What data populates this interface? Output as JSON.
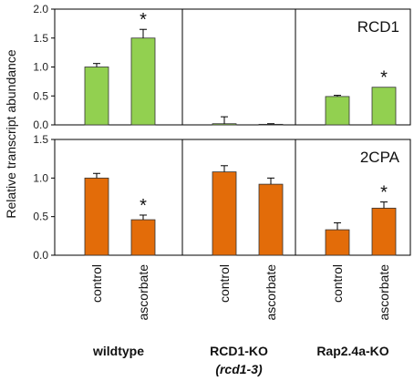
{
  "chart_data": {
    "type": "bar",
    "ylabel": "Relative transcript abundance",
    "categories": [
      "control",
      "ascorbate",
      "control",
      "ascorbate",
      "control",
      "ascorbate"
    ],
    "groups": [
      {
        "label": "wildtype",
        "sublabel": ""
      },
      {
        "label": "RCD1-KO",
        "sublabel": "(rcd1-3)"
      },
      {
        "label": "Rap2.4a-KO",
        "sublabel": ""
      }
    ],
    "panels": [
      {
        "title": "RCD1",
        "color": "#92d050",
        "ylim": [
          0,
          2.0
        ],
        "yticks": [
          "0.0",
          "0.5",
          "1.0",
          "1.5",
          "2.0"
        ],
        "values": [
          1.0,
          1.5,
          0.02,
          0.01,
          0.49,
          0.65
        ],
        "errors": [
          0.06,
          0.15,
          0.12,
          0.01,
          0.02,
          0.0
        ],
        "significance": [
          "",
          "*",
          "",
          "",
          "",
          "*"
        ]
      },
      {
        "title": "2CPA",
        "color": "#e36c09",
        "ylim": [
          0,
          1.5
        ],
        "yticks": [
          "0.0",
          "0.5",
          "1.0",
          "1.5"
        ],
        "values": [
          1.0,
          0.46,
          1.08,
          0.92,
          0.33,
          0.61
        ],
        "errors": [
          0.06,
          0.06,
          0.08,
          0.08,
          0.09,
          0.08
        ],
        "significance": [
          "",
          "*",
          "",
          "",
          "",
          "*"
        ]
      }
    ]
  }
}
